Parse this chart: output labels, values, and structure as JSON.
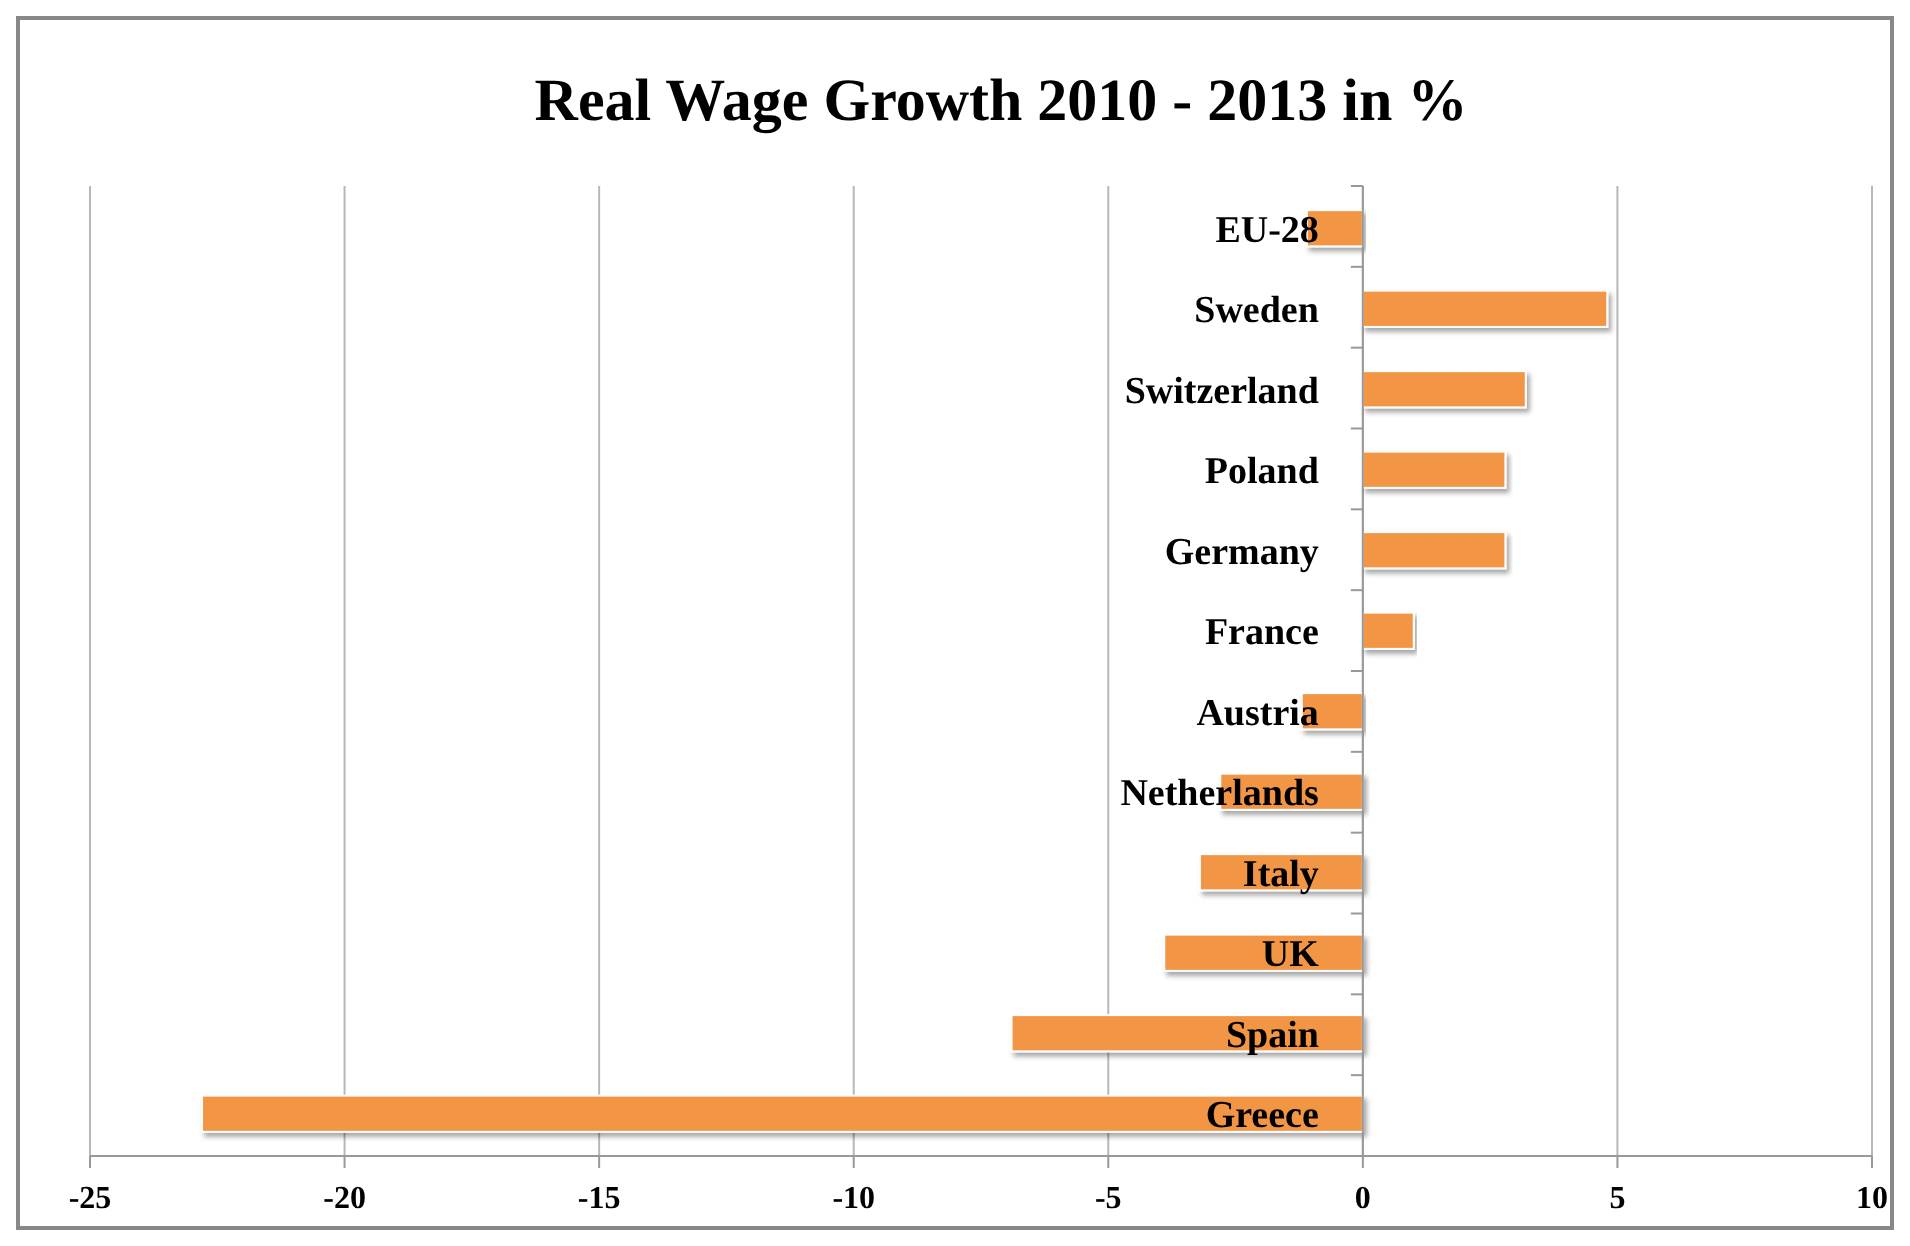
{
  "chart_data": {
    "type": "bar",
    "orientation": "horizontal",
    "title": "Real Wage Growth 2010 - 2013 in %",
    "categories": [
      "EU-28",
      "Sweden",
      "Switzerland",
      "Poland",
      "Germany",
      "France",
      "Austria",
      "Netherlands",
      "Italy",
      "UK",
      "Spain",
      "Greece"
    ],
    "values": [
      -1.1,
      4.8,
      3.2,
      2.8,
      2.8,
      1.0,
      -1.2,
      -2.8,
      -3.2,
      -3.9,
      -6.9,
      -22.8
    ],
    "color": "#f29544",
    "xlim": [
      -25,
      10
    ],
    "xticks": [
      -25,
      -20,
      -15,
      -10,
      -5,
      0,
      5,
      10
    ],
    "grid": "x"
  }
}
